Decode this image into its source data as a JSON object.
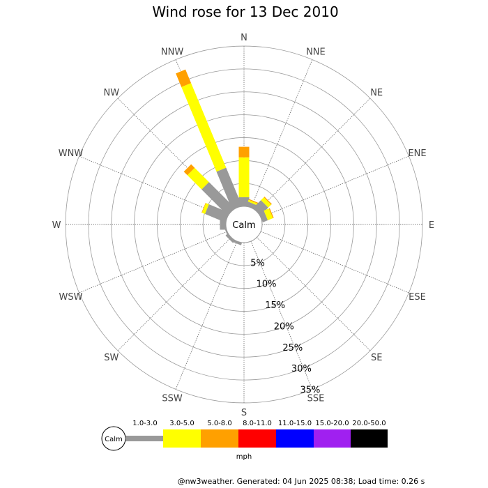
{
  "chart_data": {
    "type": "wind-rose",
    "title": "Wind rose for 13 Dec 2010",
    "directions": [
      "N",
      "NNE",
      "NE",
      "ENE",
      "E",
      "ESE",
      "SE",
      "SSE",
      "S",
      "SSW",
      "SW",
      "WSW",
      "W",
      "WNW",
      "NW",
      "NNW"
    ],
    "rings_percent": [
      5,
      10,
      15,
      20,
      25,
      30,
      35
    ],
    "ring_labels": [
      "5%",
      "10%",
      "15%",
      "20%",
      "25%",
      "30%",
      "35%"
    ],
    "calm_label": "Calm",
    "speed_bins": [
      {
        "label": "1.0-3.0",
        "color": "#999999"
      },
      {
        "label": "3.0-5.0",
        "color": "#ffff00"
      },
      {
        "label": "5.0-8.0",
        "color": "#ffa000"
      },
      {
        "label": "8.0-11.0",
        "color": "#ff0000"
      },
      {
        "label": "11.0-15.0",
        "color": "#0000ff"
      },
      {
        "label": "15.0-20.0",
        "color": "#a020f0"
      },
      {
        "label": "20.0-50.0",
        "color": "#000000"
      }
    ],
    "units": "mph",
    "cumulative_percent": {
      "N": [
        2.0,
        10.7,
        13.0
      ],
      "NNE": [
        1.0,
        1.4,
        1.6
      ],
      "NE": [
        2.4,
        3.3,
        3.5
      ],
      "ENE": [
        1.2,
        2.4,
        2.6
      ],
      "E": [
        0,
        0,
        0
      ],
      "ESE": [
        0,
        0,
        0
      ],
      "SE": [
        0,
        0,
        0
      ],
      "SSE": [
        0,
        0,
        0
      ],
      "S": [
        0,
        0,
        0
      ],
      "SSW": [
        0.5,
        0.5,
        0.5
      ],
      "SW": [
        0.6,
        0.6,
        0.6
      ],
      "WSW": [
        0.3,
        0.3,
        0.3
      ],
      "W": [
        1.3,
        1.3,
        1.3
      ],
      "WNW": [
        4.8,
        5.5,
        5.6
      ],
      "NW": [
        8.0,
        12.4,
        13.5
      ],
      "NNW": [
        9.0,
        29.0,
        32.2
      ]
    }
  },
  "footer": "@nw3weather. Generated: 04 Jun 2025 08:38; Load time: 0.26 s"
}
